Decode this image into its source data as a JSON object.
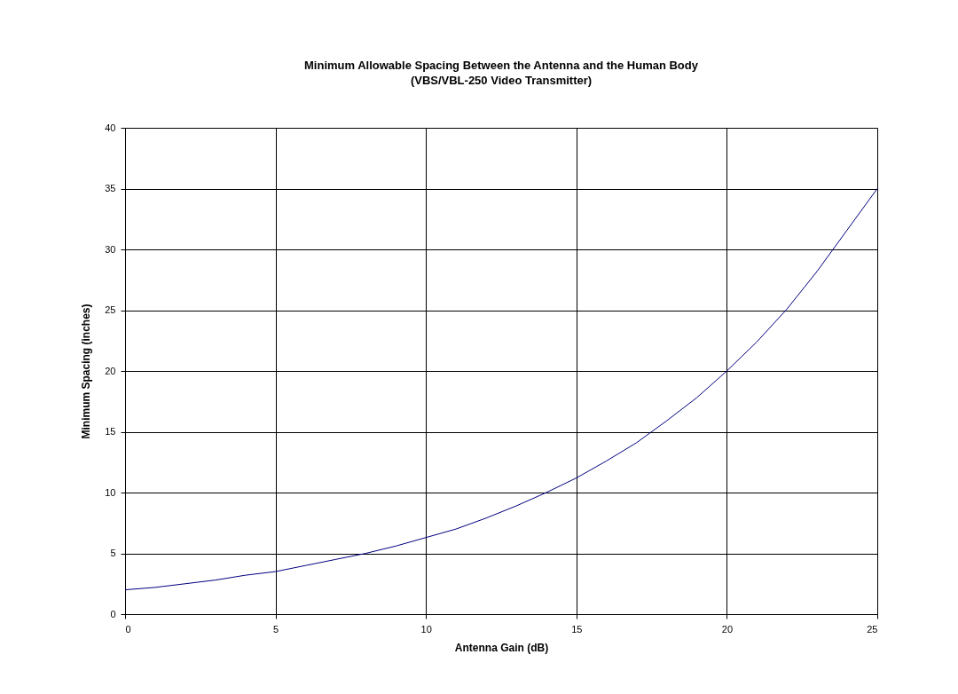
{
  "chart_data": {
    "type": "line",
    "title": "Minimum Allowable Spacing Between the Antenna and the Human Body",
    "subtitle": "(VBS/VBL-250 Video Transmitter)",
    "xlabel": "Antenna Gain (dB)",
    "ylabel": "Minimum Spacing (inches)",
    "x": [
      0,
      1,
      2,
      3,
      4,
      5,
      6,
      7,
      8,
      9,
      10,
      11,
      12,
      13,
      14,
      15,
      16,
      17,
      18,
      19,
      20,
      21,
      22,
      23,
      24,
      25
    ],
    "series": [
      {
        "color": "#000080",
        "values": [
          2.0,
          2.2,
          2.5,
          2.8,
          3.2,
          3.5,
          4.0,
          4.5,
          5.0,
          5.6,
          6.3,
          7.0,
          7.9,
          8.9,
          10.0,
          11.2,
          12.6,
          14.1,
          15.9,
          17.8,
          20.0,
          22.4,
          25.1,
          28.2,
          31.6,
          35.0
        ]
      }
    ],
    "xlim": [
      0,
      25
    ],
    "xticks": [
      0,
      5,
      10,
      15,
      20,
      25
    ],
    "ylim": [
      0,
      40
    ],
    "yticks": [
      0,
      5,
      10,
      15,
      20,
      25,
      30,
      35,
      40
    ],
    "grid": true,
    "marker": "none",
    "line_style": "solid"
  }
}
